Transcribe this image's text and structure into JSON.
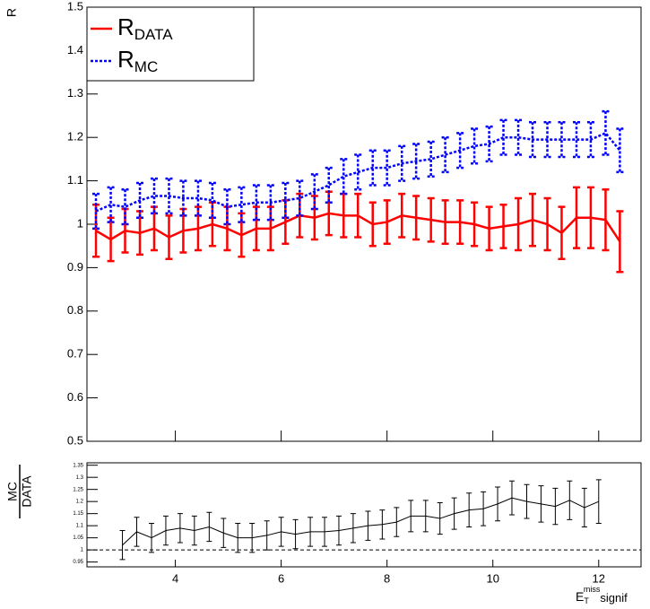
{
  "chart_data": [
    {
      "type": "line",
      "ylabel": "R",
      "ylim": [
        0.5,
        1.5
      ],
      "yticks": [
        0.5,
        0.6,
        0.7,
        0.8,
        0.9,
        1,
        1.1,
        1.2,
        1.3,
        1.4,
        1.5
      ],
      "xlim": [
        2.33,
        12.8
      ],
      "legend": "upper left",
      "series": [
        {
          "name": "R",
          "name_sub": "DATA",
          "color": "#ff0000",
          "style": "solid",
          "x": [
            2.5,
            2.78,
            3.05,
            3.33,
            3.6,
            3.88,
            4.15,
            4.43,
            4.7,
            4.98,
            5.25,
            5.53,
            5.8,
            6.08,
            6.35,
            6.63,
            6.9,
            7.18,
            7.45,
            7.73,
            8.0,
            8.28,
            8.55,
            8.83,
            9.1,
            9.38,
            9.65,
            9.93,
            10.2,
            10.48,
            10.75,
            11.03,
            11.3,
            11.58,
            11.85,
            12.13,
            12.4
          ],
          "values": [
            0.985,
            0.965,
            0.985,
            0.98,
            0.99,
            0.97,
            0.985,
            0.99,
            1.0,
            0.99,
            0.975,
            0.99,
            0.99,
            1.005,
            1.02,
            1.015,
            1.025,
            1.02,
            1.02,
            1.0,
            1.005,
            1.02,
            1.015,
            1.01,
            1.005,
            1.005,
            1.0,
            0.99,
            0.995,
            1.0,
            1.01,
            1.0,
            0.98,
            1.015,
            1.015,
            1.01,
            0.96
          ],
          "errors": [
            0.06,
            0.05,
            0.05,
            0.05,
            0.05,
            0.05,
            0.05,
            0.05,
            0.05,
            0.05,
            0.05,
            0.05,
            0.05,
            0.05,
            0.05,
            0.05,
            0.05,
            0.05,
            0.05,
            0.05,
            0.05,
            0.05,
            0.05,
            0.05,
            0.05,
            0.05,
            0.05,
            0.05,
            0.05,
            0.06,
            0.06,
            0.06,
            0.06,
            0.07,
            0.07,
            0.07,
            0.07
          ]
        },
        {
          "name": "R",
          "name_sub": "MC",
          "color": "#0000ff",
          "style": "dotted",
          "x": [
            2.5,
            2.78,
            3.05,
            3.33,
            3.6,
            3.88,
            4.15,
            4.43,
            4.7,
            4.98,
            5.25,
            5.53,
            5.8,
            6.08,
            6.35,
            6.63,
            6.9,
            7.18,
            7.45,
            7.73,
            8.0,
            8.28,
            8.55,
            8.83,
            9.1,
            9.38,
            9.65,
            9.93,
            10.2,
            10.48,
            10.75,
            11.03,
            11.3,
            11.58,
            11.85,
            12.13,
            12.4
          ],
          "values": [
            1.03,
            1.045,
            1.04,
            1.055,
            1.065,
            1.065,
            1.06,
            1.06,
            1.055,
            1.04,
            1.045,
            1.05,
            1.05,
            1.055,
            1.06,
            1.075,
            1.09,
            1.11,
            1.12,
            1.13,
            1.13,
            1.14,
            1.145,
            1.15,
            1.16,
            1.17,
            1.18,
            1.185,
            1.2,
            1.2,
            1.195,
            1.195,
            1.195,
            1.195,
            1.195,
            1.21,
            1.17
          ],
          "errors": [
            0.04,
            0.04,
            0.04,
            0.04,
            0.04,
            0.04,
            0.04,
            0.04,
            0.04,
            0.04,
            0.04,
            0.04,
            0.04,
            0.04,
            0.04,
            0.04,
            0.04,
            0.04,
            0.04,
            0.04,
            0.04,
            0.04,
            0.04,
            0.04,
            0.04,
            0.04,
            0.04,
            0.04,
            0.04,
            0.04,
            0.04,
            0.04,
            0.04,
            0.04,
            0.04,
            0.05,
            0.05
          ]
        }
      ]
    },
    {
      "type": "line",
      "ylabel_num": "MC",
      "ylabel_den": "DATA",
      "ylim": [
        0.93,
        1.36
      ],
      "yticks": [
        0.95,
        1,
        1.05,
        1.1,
        1.15,
        1.2,
        1.25,
        1.3,
        1.35
      ],
      "xlim": [
        2.33,
        12.8
      ],
      "xticks": [
        4,
        6,
        8,
        10,
        12
      ],
      "xlabel": {
        "main": "E",
        "sub": "T",
        "sup": "miss",
        "rest": "signif"
      },
      "reference_line": 1,
      "series": [
        {
          "color": "#000000",
          "style": "solid",
          "x": [
            3.0,
            3.27,
            3.55,
            3.82,
            4.09,
            4.36,
            4.64,
            4.91,
            5.18,
            5.45,
            5.73,
            6.0,
            6.27,
            6.55,
            6.82,
            7.09,
            7.36,
            7.64,
            7.91,
            8.18,
            8.45,
            8.73,
            9.0,
            9.27,
            9.55,
            9.82,
            10.09,
            10.36,
            10.64,
            10.91,
            11.18,
            11.45,
            11.73,
            12.0
          ],
          "values": [
            1.02,
            1.075,
            1.05,
            1.08,
            1.09,
            1.08,
            1.095,
            1.07,
            1.05,
            1.05,
            1.06,
            1.075,
            1.065,
            1.075,
            1.075,
            1.08,
            1.09,
            1.1,
            1.105,
            1.115,
            1.14,
            1.14,
            1.13,
            1.15,
            1.165,
            1.17,
            1.19,
            1.215,
            1.2,
            1.19,
            1.18,
            1.205,
            1.175,
            1.2
          ],
          "errors": [
            0.06,
            0.06,
            0.06,
            0.06,
            0.06,
            0.06,
            0.06,
            0.06,
            0.06,
            0.06,
            0.06,
            0.06,
            0.06,
            0.06,
            0.06,
            0.06,
            0.06,
            0.06,
            0.06,
            0.06,
            0.065,
            0.065,
            0.065,
            0.065,
            0.07,
            0.07,
            0.07,
            0.07,
            0.07,
            0.075,
            0.075,
            0.08,
            0.08,
            0.09
          ]
        }
      ]
    }
  ]
}
